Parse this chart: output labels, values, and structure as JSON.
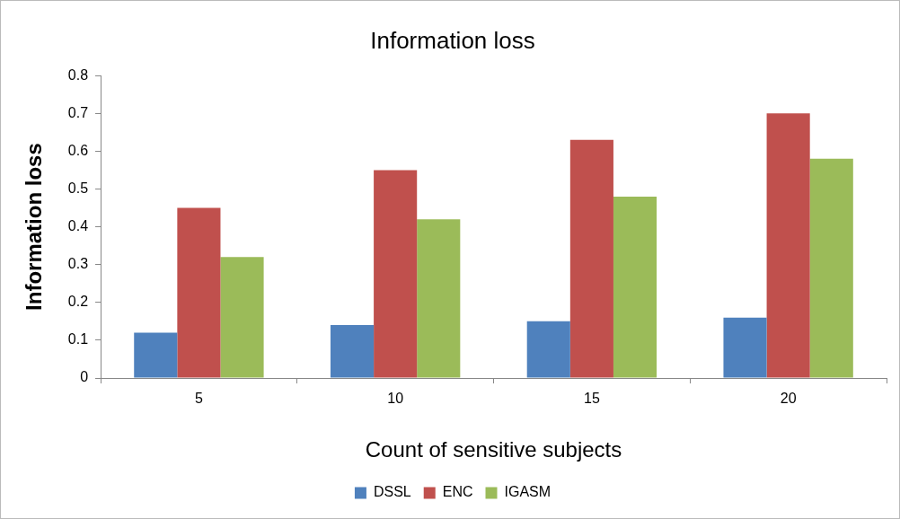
{
  "chart_data": {
    "type": "bar",
    "title": "Information loss",
    "xlabel": "Count of sensitive subjects",
    "ylabel": "Information loss",
    "categories": [
      "5",
      "10",
      "15",
      "20"
    ],
    "series": [
      {
        "name": "DSSL",
        "color": "#4f81bd",
        "values": [
          0.12,
          0.14,
          0.15,
          0.16
        ]
      },
      {
        "name": "ENC",
        "color": "#c0504d",
        "values": [
          0.45,
          0.55,
          0.63,
          0.7
        ]
      },
      {
        "name": "IGASM",
        "color": "#9bbb59",
        "values": [
          0.32,
          0.42,
          0.48,
          0.58
        ]
      }
    ],
    "ylim": [
      0,
      0.8
    ],
    "yticks": [
      0,
      0.1,
      0.2,
      0.3,
      0.4,
      0.5,
      0.6,
      0.7,
      0.8
    ],
    "grid": false,
    "legend": "bottom"
  }
}
